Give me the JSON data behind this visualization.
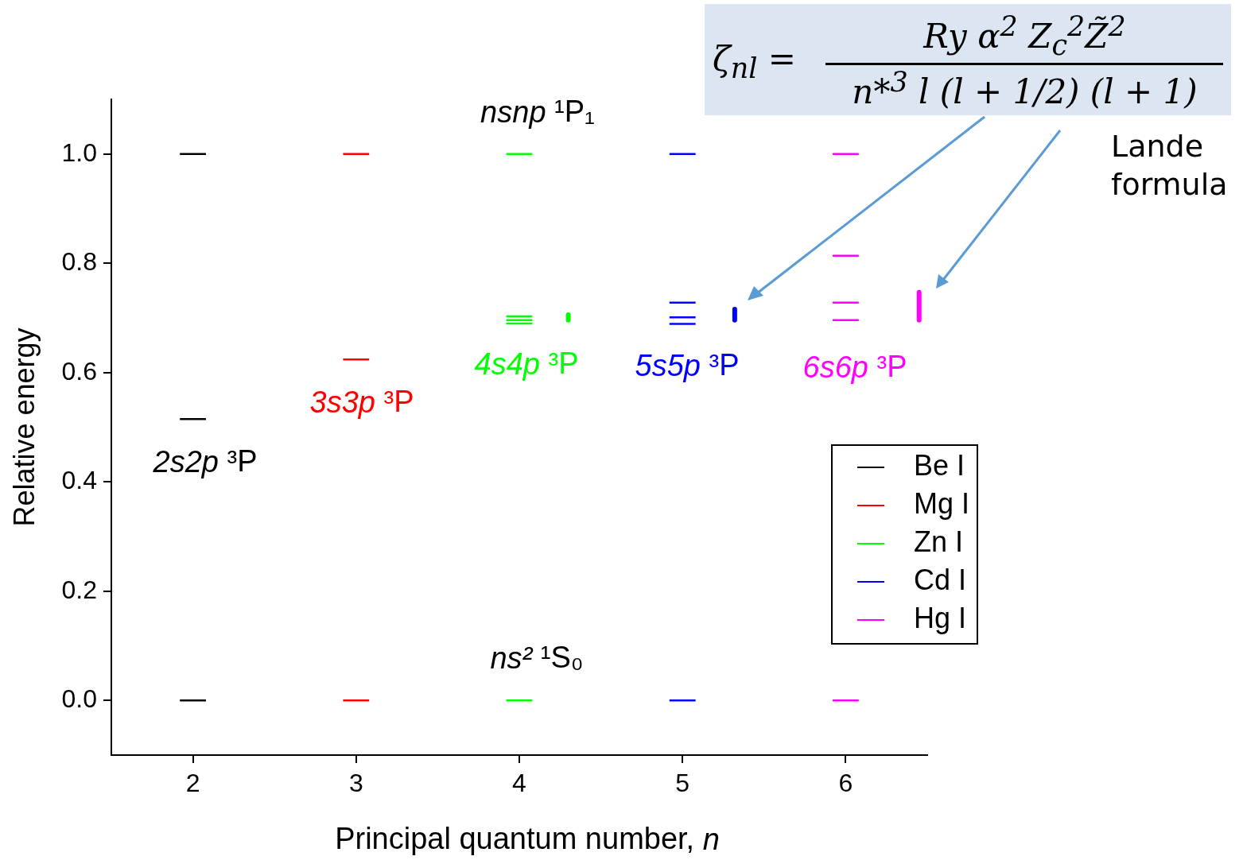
{
  "chart_data": {
    "type": "line",
    "xlabel": "Principal quantum number, n",
    "ylabel": "Relative energy",
    "xlim": [
      1.5,
      6.5
    ],
    "xticks": [
      2,
      3,
      4,
      5,
      6
    ],
    "ylim": [
      -0.1,
      1.1
    ],
    "yticks": [
      {
        "value": 0,
        "label": "0.0"
      },
      {
        "value": 0.2,
        "label": "0.2"
      },
      {
        "value": 0.4,
        "label": "0.4"
      },
      {
        "value": 0.6,
        "label": "0.6"
      },
      {
        "value": 0.8,
        "label": "0.8"
      },
      {
        "value": 1,
        "label": "1.0"
      }
    ],
    "grid": false,
    "legend": "bottom right",
    "series": [
      {
        "name": "Be I",
        "color": "#000000",
        "x": [
          1.92,
          2.08
        ],
        "values": [
          0,
          0
        ]
      },
      {
        "color": "#000000",
        "x": [
          1.92,
          2.08
        ],
        "values": [
          0.515,
          0.515
        ]
      },
      {
        "color": "#000000",
        "x": [
          1.92,
          2.08
        ],
        "values": [
          1,
          1
        ]
      },
      {
        "name": "Mg I",
        "color": "#ff0000",
        "x": [
          2.92,
          3.08
        ],
        "values": [
          0,
          0
        ]
      },
      {
        "color": "#ff0000",
        "x": [
          2.92,
          3.08
        ],
        "values": [
          0.624,
          0.624
        ]
      },
      {
        "color": "#ff0000",
        "x": [
          2.92,
          3.08
        ],
        "values": [
          1,
          1
        ]
      },
      {
        "name": "Zn I",
        "color": "#00ff00",
        "x": [
          3.92,
          4.08
        ],
        "values": [
          0,
          0
        ]
      },
      {
        "color": "#00ff00",
        "x": [
          3.92,
          4.08
        ],
        "values": [
          0.69,
          0.69
        ]
      },
      {
        "color": "#00ff00",
        "x": [
          3.92,
          4.08
        ],
        "values": [
          0.696,
          0.696
        ]
      },
      {
        "color": "#00ff00",
        "x": [
          3.92,
          4.08
        ],
        "values": [
          0.703,
          0.703
        ]
      },
      {
        "color": "#00ff00",
        "x": [
          3.92,
          4.08
        ],
        "values": [
          1,
          1
        ]
      },
      {
        "name": "Cd I",
        "color": "#0000ff",
        "x": [
          4.92,
          5.08
        ],
        "values": [
          0,
          0
        ]
      },
      {
        "color": "#0000ff",
        "x": [
          4.92,
          5.08
        ],
        "values": [
          0.689,
          0.689
        ]
      },
      {
        "color": "#0000ff",
        "x": [
          4.92,
          5.08
        ],
        "values": [
          0.701,
          0.701
        ]
      },
      {
        "color": "#0000ff",
        "x": [
          4.92,
          5.08
        ],
        "values": [
          0.728,
          0.728
        ]
      },
      {
        "color": "#0000ff",
        "x": [
          4.92,
          5.08
        ],
        "values": [
          1,
          1
        ]
      },
      {
        "name": "Hg I",
        "color": "#ff00ff",
        "x": [
          5.92,
          6.08
        ],
        "values": [
          0,
          0
        ]
      },
      {
        "color": "#ff00ff",
        "x": [
          5.92,
          6.08
        ],
        "values": [
          0.696,
          0.696
        ]
      },
      {
        "color": "#ff00ff",
        "x": [
          5.92,
          6.08
        ],
        "values": [
          0.728,
          0.728
        ]
      },
      {
        "color": "#ff00ff",
        "x": [
          5.92,
          6.08
        ],
        "values": [
          0.814,
          0.814
        ]
      },
      {
        "color": "#ff00ff",
        "x": [
          5.92,
          6.08
        ],
        "values": [
          1,
          1
        ]
      },
      {
        "color": "#00ff00",
        "x": [
          4.3,
          4.3
        ],
        "values": [
          0.696,
          0.706
        ]
      },
      {
        "color": "#0000ff",
        "x": [
          5.32,
          5.32
        ],
        "values": [
          0.696,
          0.716
        ]
      },
      {
        "color": "#ff00ff",
        "x": [
          6.45,
          6.45
        ],
        "values": [
          0.696,
          0.747
        ]
      }
    ],
    "annotations": [
      "ζ$_{nl}$ =",
      "Ry α$^{2}$ Z$_{c}$$^{2}$Z̃$^{2}$",
      "n*$^{3}$ l (l + 1/2) (l + 1)",
      "Lande formula",
      "nsnp ¹P₁",
      "ns² ¹S₀",
      "2s2p ³P",
      "3s3p ³P",
      "4s4p ³P",
      "5s5p ³P",
      "6s6p ³P"
    ]
  }
}
